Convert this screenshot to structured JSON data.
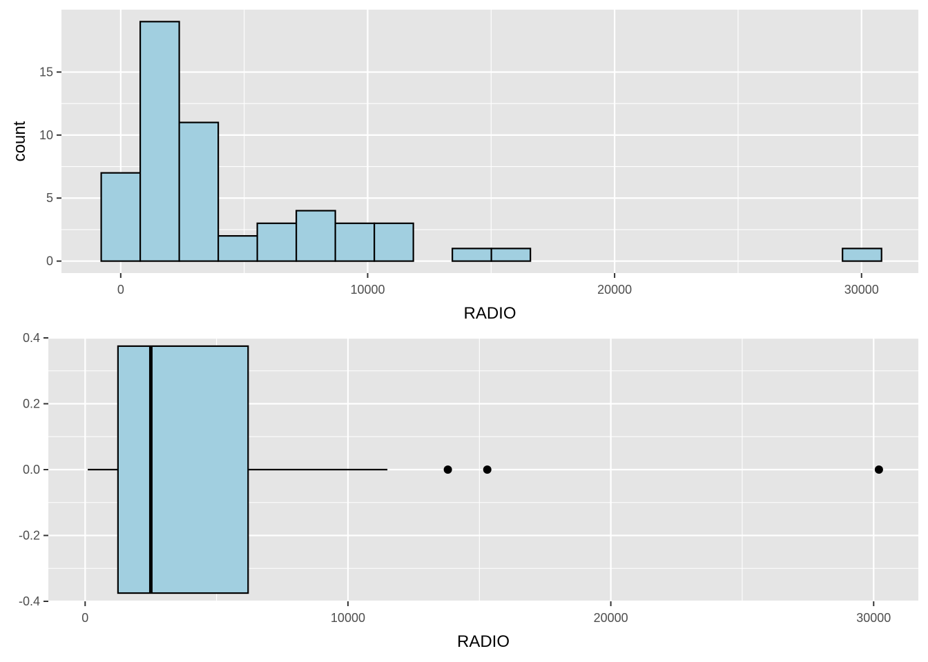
{
  "chart_data": [
    {
      "type": "histogram",
      "xlabel": "RADIO",
      "ylabel": "count",
      "xlim": [
        -2400,
        32300
      ],
      "ylim": [
        -0.95,
        19.95
      ],
      "bin_width": 1580,
      "bins": [
        {
          "start": -790,
          "end": 790,
          "count": 7
        },
        {
          "start": 790,
          "end": 2370,
          "count": 19
        },
        {
          "start": 2370,
          "end": 3950,
          "count": 11
        },
        {
          "start": 3950,
          "end": 5530,
          "count": 2
        },
        {
          "start": 5530,
          "end": 7110,
          "count": 3
        },
        {
          "start": 7110,
          "end": 8690,
          "count": 4
        },
        {
          "start": 8690,
          "end": 10270,
          "count": 3
        },
        {
          "start": 10270,
          "end": 11850,
          "count": 3
        },
        {
          "start": 11850,
          "end": 13430,
          "count": 0
        },
        {
          "start": 13430,
          "end": 15010,
          "count": 1
        },
        {
          "start": 15010,
          "end": 16590,
          "count": 1
        },
        {
          "start": 16590,
          "end": 18170,
          "count": 0
        },
        {
          "start": 18170,
          "end": 19750,
          "count": 0
        },
        {
          "start": 19750,
          "end": 21330,
          "count": 0
        },
        {
          "start": 21330,
          "end": 22910,
          "count": 0
        },
        {
          "start": 22910,
          "end": 24490,
          "count": 0
        },
        {
          "start": 24490,
          "end": 26070,
          "count": 0
        },
        {
          "start": 26070,
          "end": 27650,
          "count": 0
        },
        {
          "start": 27650,
          "end": 29230,
          "count": 0
        },
        {
          "start": 29230,
          "end": 30810,
          "count": 1
        }
      ],
      "x_ticks": [
        0,
        10000,
        20000,
        30000
      ],
      "x_tick_labels": [
        "0",
        "10000",
        "20000",
        "30000"
      ],
      "y_ticks": [
        0,
        5,
        10,
        15
      ],
      "y_tick_labels": [
        "0",
        "5",
        "10",
        "15"
      ],
      "fill": "#a1cfe0",
      "stroke": "#000000",
      "grid": true
    },
    {
      "type": "boxplot",
      "xlabel": "RADIO",
      "ylabel": "",
      "xlim": [
        -1400,
        31700
      ],
      "ylim": [
        -0.4,
        0.4
      ],
      "box": {
        "whisker_low": 100,
        "q1": 1250,
        "median": 2500,
        "q3": 6200,
        "whisker_high": 11500,
        "y_bottom": -0.375,
        "y_top": 0.375
      },
      "outliers": [
        13800,
        15300,
        30200
      ],
      "x_ticks": [
        0,
        10000,
        20000,
        30000
      ],
      "x_tick_labels": [
        "0",
        "10000",
        "20000",
        "30000"
      ],
      "y_ticks": [
        -0.4,
        -0.2,
        0.0,
        0.2,
        0.4
      ],
      "y_tick_labels": [
        "-0.4",
        "-0.2",
        "0.0",
        "0.2",
        "0.4"
      ],
      "fill": "#a1cfe0",
      "stroke": "#000000",
      "grid": true
    }
  ],
  "colors": {
    "panel_background": "#e5e5e5",
    "grid_major": "#ffffff",
    "tick_text": "#4d4d4d",
    "tick_mark": "#333333"
  }
}
